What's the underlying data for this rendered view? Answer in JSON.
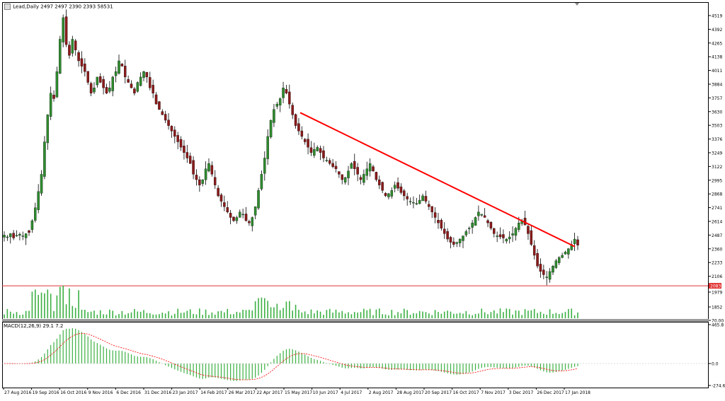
{
  "header": {
    "symbol_info": "2497 2497 2390 2393 58531",
    "symbol_name": "Lead,Daily"
  },
  "macd_panel": {
    "label": "MACD(12,26,9) 29.1 7.2",
    "axis_labels": [
      "465.8",
      "0.0",
      "-274.6"
    ]
  },
  "price_axis": {
    "labels": [
      "4519",
      "4392",
      "4265",
      "4138",
      "4011",
      "3884",
      "3757",
      "3630",
      "3503",
      "3376",
      "3249",
      "3122",
      "2995",
      "2868",
      "2741",
      "2614",
      "2487",
      "2360",
      "2233",
      "2106",
      "1979",
      "1852",
      "70.00"
    ],
    "support_tag": "2083"
  },
  "date_axis": {
    "labels": [
      "27 Aug 2016",
      "19 Sep 2016",
      "16 Oct 2016",
      "9 Nov 2016",
      "6 Dec 2016",
      "31 Dec 2016",
      "23 Jan 2017",
      "14 Feb 2017",
      "26 Mar 2017",
      "22 Apr 2017",
      "15 May 2017",
      "10 Jun 2017",
      "4 Jul 2017",
      "2 Aug 2017",
      "28 Aug 2017",
      "20 Sep 2017",
      "16 Oct 2017",
      "7 Nov 2017",
      "3 Dec 2017",
      "26 Dec 2017",
      "17 Jan 2018"
    ]
  },
  "colors": {
    "bull_candle": "#2e8b2e",
    "bear_candle": "#8b1a1a",
    "trendline": "#ff0000",
    "support_line": "#e03030",
    "volume": "#3cb043",
    "macd_hist": "#3cb043",
    "macd_signal": "#ff0000"
  },
  "chart_data": {
    "type": "candlestick",
    "title": "",
    "price_range": [
      2083,
      4580
    ],
    "candles_close": [
      2487,
      2470,
      2500,
      2460,
      2485,
      2495,
      2480,
      2500,
      2510,
      2620,
      2740,
      2890,
      3050,
      3350,
      3600,
      3800,
      3750,
      4000,
      4300,
      4500,
      4250,
      4150,
      4300,
      4200,
      4100,
      4050,
      4000,
      3900,
      3800,
      3850,
      3950,
      3900,
      3850,
      3800,
      3850,
      3950,
      4000,
      4100,
      4050,
      3950,
      3900,
      3850,
      3800,
      3900,
      3950,
      4000,
      3950,
      3850,
      3800,
      3700,
      3650,
      3600,
      3550,
      3500,
      3450,
      3400,
      3350,
      3300,
      3250,
      3200,
      3150,
      3050,
      3000,
      2950,
      3000,
      3100,
      3150,
      3050,
      2950,
      2850,
      2800,
      2750,
      2700,
      2650,
      2620,
      2650,
      2700,
      2680,
      2620,
      2600,
      2650,
      2750,
      2900,
      3050,
      3200,
      3400,
      3550,
      3650,
      3700,
      3750,
      3850,
      3800,
      3700,
      3600,
      3500,
      3450,
      3400,
      3350,
      3300,
      3250,
      3280,
      3300,
      3250,
      3200,
      3180,
      3150,
      3120,
      3100,
      3050,
      3000,
      3020,
      3080,
      3150,
      3100,
      3050,
      3000,
      3050,
      3100,
      3150,
      3080,
      3000,
      2950,
      2900,
      2850,
      2870,
      2900,
      2950,
      2920,
      2880,
      2850,
      2820,
      2800,
      2790,
      2780,
      2810,
      2850,
      2800,
      2750,
      2700,
      2650,
      2600,
      2550,
      2500,
      2450,
      2420,
      2400,
      2420,
      2450,
      2480,
      2520,
      2550,
      2600,
      2650,
      2700,
      2680,
      2650,
      2600,
      2550,
      2500,
      2480,
      2470,
      2460,
      2450,
      2470,
      2500,
      2550,
      2600,
      2620,
      2580,
      2500,
      2400,
      2300,
      2200,
      2150,
      2120,
      2100,
      2150,
      2200,
      2250,
      2280,
      2300,
      2330,
      2360,
      2400,
      2450,
      2393
    ],
    "volume_peak": 1852,
    "trendline": {
      "start_price": 3620,
      "end_price": 2380
    },
    "support_level": 2083,
    "macd": {
      "range": [
        -274.6,
        465.8
      ],
      "value": 29.1,
      "signal": 7.2
    }
  }
}
